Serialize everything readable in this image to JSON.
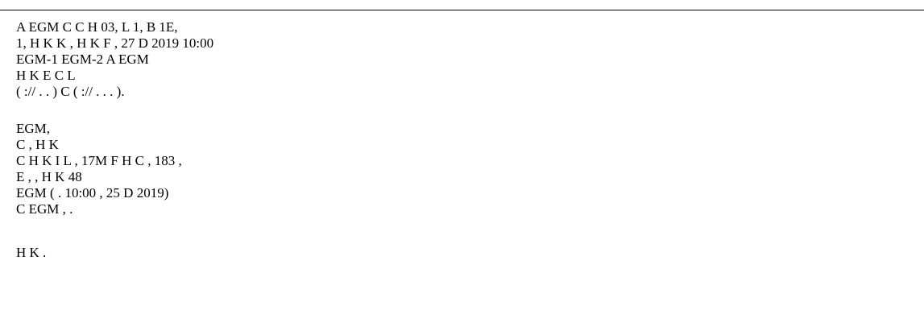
{
  "document": {
    "paragraphs": [
      {
        "lines": [
          "A                                     EGM                  C                                                   C                 H     03, L        1, B        1E,",
          "1, H        K                                                      K                  , H        K              F          , 27 D                      2019        10:00",
          "                                   EGM-1     EGM-2                                    A                                               EGM",
          "                                                                                                    H        K        E                          C              L",
          "(         ://         .                          .    )          C                           (         ://                 .        .             .               )."
        ]
      },
      {
        "lines": [
          "                                                                    EGM,",
          "                                                                                                            C                  ,   H         K",
          "             C                            H       K       I                                 L         ,        17M F          H            C           , 183         ,",
          "      E       ,                 , H        K                                                                                   48",
          "                                                        EGM (     .                   10:00                              , 25  D                2019)",
          "C          EGM ,                    ."
        ]
      },
      {
        "lines": [
          "                                                                                          H        K                             ."
        ]
      }
    ]
  }
}
